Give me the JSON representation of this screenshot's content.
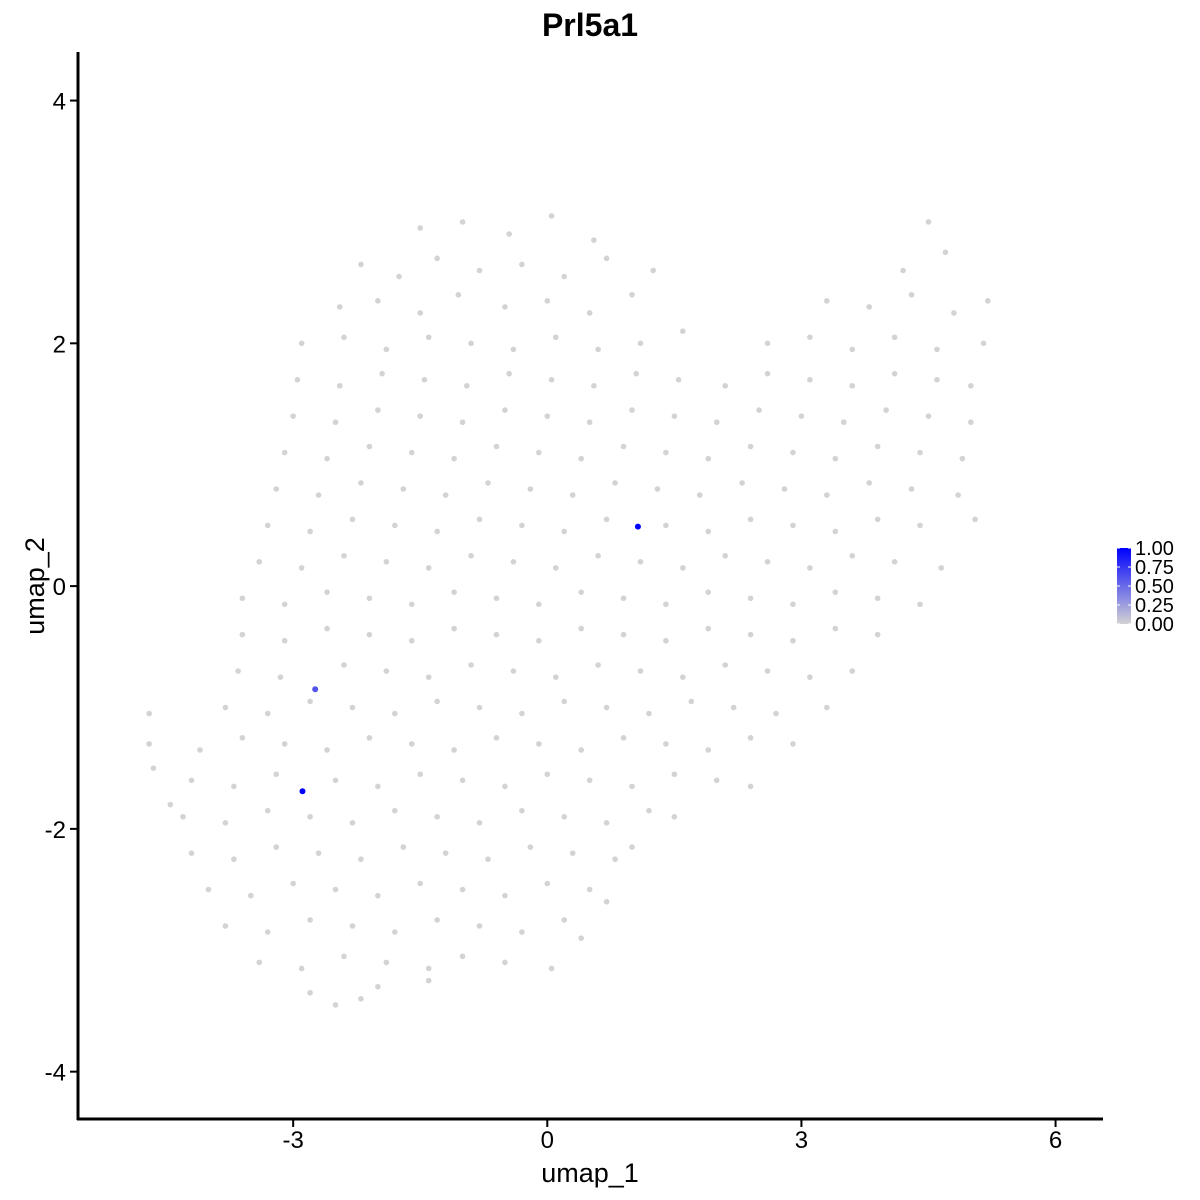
{
  "chart_data": {
    "type": "scatter",
    "title": "Prl5a1",
    "xlabel": "umap_1",
    "ylabel": "umap_2",
    "xlim": [
      -5.54,
      6.56
    ],
    "ylim": [
      -4.39,
      4.4
    ],
    "x_ticks": [
      -3,
      0,
      3,
      6
    ],
    "x_tick_labels": [
      "-3",
      "0",
      "3",
      "6"
    ],
    "y_ticks": [
      -4,
      -2,
      0,
      2,
      4
    ],
    "y_tick_labels": [
      "-4",
      "-2",
      "0",
      "2",
      "4"
    ],
    "grid": false,
    "legend": {
      "placement": "right",
      "type": "colorbar",
      "low_color": "#D3D3D3",
      "high_color": "#0000FF",
      "range": [
        0,
        1
      ],
      "labels": [
        "1.00",
        "0.75",
        "0.50",
        "0.25",
        "0.00"
      ],
      "values": [
        1.0,
        0.75,
        0.5,
        0.25,
        0.0
      ]
    },
    "expressing_cells": [
      {
        "x": 1.07,
        "y": 0.49,
        "value": 1.0
      },
      {
        "x": -2.74,
        "y": -0.85,
        "value": 0.6
      },
      {
        "x": -2.89,
        "y": -1.69,
        "value": 1.0
      }
    ],
    "non_expressing_value": 0.0,
    "non_expressing_cells": [
      [
        -1.5,
        2.95
      ],
      [
        -1.0,
        3.0
      ],
      [
        -0.45,
        2.9
      ],
      [
        0.05,
        3.05
      ],
      [
        0.55,
        2.85
      ],
      [
        4.5,
        3.0
      ],
      [
        -2.2,
        2.65
      ],
      [
        -1.75,
        2.55
      ],
      [
        -1.3,
        2.7
      ],
      [
        -0.8,
        2.6
      ],
      [
        -0.3,
        2.65
      ],
      [
        0.2,
        2.55
      ],
      [
        0.7,
        2.7
      ],
      [
        1.25,
        2.6
      ],
      [
        4.2,
        2.6
      ],
      [
        4.7,
        2.75
      ],
      [
        -2.45,
        2.3
      ],
      [
        -2.0,
        2.35
      ],
      [
        -1.5,
        2.25
      ],
      [
        -1.05,
        2.4
      ],
      [
        -0.5,
        2.3
      ],
      [
        0.0,
        2.35
      ],
      [
        0.5,
        2.25
      ],
      [
        1.0,
        2.4
      ],
      [
        3.3,
        2.35
      ],
      [
        3.8,
        2.3
      ],
      [
        4.3,
        2.4
      ],
      [
        4.8,
        2.25
      ],
      [
        5.2,
        2.35
      ],
      [
        -2.9,
        2.0
      ],
      [
        -2.4,
        2.05
      ],
      [
        -1.9,
        1.95
      ],
      [
        -1.4,
        2.05
      ],
      [
        -0.9,
        2.0
      ],
      [
        -0.4,
        1.95
      ],
      [
        0.1,
        2.05
      ],
      [
        0.6,
        1.95
      ],
      [
        1.1,
        2.0
      ],
      [
        1.6,
        2.1
      ],
      [
        2.6,
        2.0
      ],
      [
        3.1,
        2.05
      ],
      [
        3.6,
        1.95
      ],
      [
        4.1,
        2.05
      ],
      [
        4.6,
        1.95
      ],
      [
        5.15,
        2.0
      ],
      [
        -2.95,
        1.7
      ],
      [
        -2.45,
        1.65
      ],
      [
        -1.95,
        1.75
      ],
      [
        -1.45,
        1.7
      ],
      [
        -0.95,
        1.65
      ],
      [
        -0.45,
        1.75
      ],
      [
        0.05,
        1.7
      ],
      [
        0.55,
        1.65
      ],
      [
        1.05,
        1.75
      ],
      [
        1.55,
        1.7
      ],
      [
        2.1,
        1.65
      ],
      [
        2.6,
        1.75
      ],
      [
        3.1,
        1.7
      ],
      [
        3.6,
        1.65
      ],
      [
        4.1,
        1.75
      ],
      [
        4.6,
        1.7
      ],
      [
        5.0,
        1.65
      ],
      [
        -3.0,
        1.4
      ],
      [
        -2.5,
        1.35
      ],
      [
        -2.0,
        1.45
      ],
      [
        -1.5,
        1.4
      ],
      [
        -1.0,
        1.35
      ],
      [
        -0.5,
        1.45
      ],
      [
        0.0,
        1.4
      ],
      [
        0.5,
        1.35
      ],
      [
        1.0,
        1.45
      ],
      [
        1.5,
        1.4
      ],
      [
        2.0,
        1.35
      ],
      [
        2.5,
        1.45
      ],
      [
        3.0,
        1.4
      ],
      [
        3.5,
        1.35
      ],
      [
        4.0,
        1.45
      ],
      [
        4.5,
        1.4
      ],
      [
        5.0,
        1.35
      ],
      [
        -3.1,
        1.1
      ],
      [
        -2.6,
        1.05
      ],
      [
        -2.1,
        1.15
      ],
      [
        -1.6,
        1.1
      ],
      [
        -1.1,
        1.05
      ],
      [
        -0.6,
        1.15
      ],
      [
        -0.1,
        1.1
      ],
      [
        0.4,
        1.05
      ],
      [
        0.9,
        1.15
      ],
      [
        1.4,
        1.1
      ],
      [
        1.9,
        1.05
      ],
      [
        2.4,
        1.15
      ],
      [
        2.9,
        1.1
      ],
      [
        3.4,
        1.05
      ],
      [
        3.9,
        1.15
      ],
      [
        4.4,
        1.1
      ],
      [
        4.9,
        1.05
      ],
      [
        -3.2,
        0.8
      ],
      [
        -2.7,
        0.75
      ],
      [
        -2.2,
        0.85
      ],
      [
        -1.7,
        0.8
      ],
      [
        -1.2,
        0.75
      ],
      [
        -0.7,
        0.85
      ],
      [
        -0.2,
        0.8
      ],
      [
        0.3,
        0.75
      ],
      [
        0.8,
        0.85
      ],
      [
        1.3,
        0.8
      ],
      [
        1.8,
        0.75
      ],
      [
        2.3,
        0.85
      ],
      [
        2.8,
        0.8
      ],
      [
        3.3,
        0.75
      ],
      [
        3.8,
        0.85
      ],
      [
        4.3,
        0.8
      ],
      [
        4.85,
        0.75
      ],
      [
        -3.3,
        0.5
      ],
      [
        -2.8,
        0.45
      ],
      [
        -2.3,
        0.55
      ],
      [
        -1.8,
        0.5
      ],
      [
        -1.3,
        0.45
      ],
      [
        -0.8,
        0.55
      ],
      [
        -0.3,
        0.5
      ],
      [
        0.2,
        0.45
      ],
      [
        0.7,
        0.55
      ],
      [
        1.4,
        0.5
      ],
      [
        1.9,
        0.45
      ],
      [
        2.4,
        0.55
      ],
      [
        2.9,
        0.5
      ],
      [
        3.4,
        0.45
      ],
      [
        3.9,
        0.55
      ],
      [
        4.4,
        0.5
      ],
      [
        5.05,
        0.55
      ],
      [
        -3.4,
        0.2
      ],
      [
        -2.9,
        0.15
      ],
      [
        -2.4,
        0.25
      ],
      [
        -1.9,
        0.2
      ],
      [
        -1.4,
        0.15
      ],
      [
        -0.9,
        0.25
      ],
      [
        -0.4,
        0.2
      ],
      [
        0.1,
        0.15
      ],
      [
        0.6,
        0.25
      ],
      [
        1.1,
        0.2
      ],
      [
        1.6,
        0.15
      ],
      [
        2.1,
        0.25
      ],
      [
        2.6,
        0.2
      ],
      [
        3.1,
        0.15
      ],
      [
        3.6,
        0.25
      ],
      [
        4.1,
        0.2
      ],
      [
        4.65,
        0.15
      ],
      [
        -3.6,
        -0.1
      ],
      [
        -3.1,
        -0.15
      ],
      [
        -2.6,
        -0.05
      ],
      [
        -2.1,
        -0.1
      ],
      [
        -1.6,
        -0.15
      ],
      [
        -1.1,
        -0.05
      ],
      [
        -0.6,
        -0.1
      ],
      [
        -0.1,
        -0.15
      ],
      [
        0.4,
        -0.05
      ],
      [
        0.9,
        -0.1
      ],
      [
        1.4,
        -0.15
      ],
      [
        1.9,
        -0.05
      ],
      [
        2.4,
        -0.1
      ],
      [
        2.9,
        -0.15
      ],
      [
        3.4,
        -0.05
      ],
      [
        3.9,
        -0.1
      ],
      [
        4.4,
        -0.15
      ],
      [
        -3.6,
        -0.4
      ],
      [
        -3.1,
        -0.45
      ],
      [
        -2.6,
        -0.35
      ],
      [
        -2.1,
        -0.4
      ],
      [
        -1.6,
        -0.45
      ],
      [
        -1.1,
        -0.35
      ],
      [
        -0.6,
        -0.4
      ],
      [
        -0.1,
        -0.45
      ],
      [
        0.4,
        -0.35
      ],
      [
        0.9,
        -0.4
      ],
      [
        1.4,
        -0.45
      ],
      [
        1.9,
        -0.35
      ],
      [
        2.4,
        -0.4
      ],
      [
        2.9,
        -0.45
      ],
      [
        3.4,
        -0.35
      ],
      [
        3.9,
        -0.4
      ],
      [
        -3.65,
        -0.7
      ],
      [
        -3.15,
        -0.75
      ],
      [
        -2.4,
        -0.65
      ],
      [
        -1.9,
        -0.7
      ],
      [
        -1.4,
        -0.75
      ],
      [
        -0.9,
        -0.65
      ],
      [
        -0.4,
        -0.7
      ],
      [
        0.1,
        -0.75
      ],
      [
        0.6,
        -0.65
      ],
      [
        1.1,
        -0.7
      ],
      [
        1.6,
        -0.75
      ],
      [
        2.1,
        -0.65
      ],
      [
        2.6,
        -0.7
      ],
      [
        3.1,
        -0.75
      ],
      [
        3.6,
        -0.7
      ],
      [
        -4.7,
        -1.05
      ],
      [
        -3.8,
        -1.0
      ],
      [
        -3.3,
        -1.05
      ],
      [
        -2.8,
        -0.95
      ],
      [
        -2.3,
        -1.0
      ],
      [
        -1.8,
        -1.05
      ],
      [
        -1.3,
        -0.95
      ],
      [
        -0.8,
        -1.0
      ],
      [
        -0.3,
        -1.05
      ],
      [
        0.2,
        -0.95
      ],
      [
        0.7,
        -1.0
      ],
      [
        1.2,
        -1.05
      ],
      [
        1.7,
        -0.95
      ],
      [
        2.2,
        -1.0
      ],
      [
        2.7,
        -1.05
      ],
      [
        3.3,
        -1.0
      ],
      [
        -4.7,
        -1.3
      ],
      [
        -4.1,
        -1.35
      ],
      [
        -3.6,
        -1.25
      ],
      [
        -3.1,
        -1.3
      ],
      [
        -2.6,
        -1.35
      ],
      [
        -2.1,
        -1.25
      ],
      [
        -1.6,
        -1.3
      ],
      [
        -1.1,
        -1.35
      ],
      [
        -0.6,
        -1.25
      ],
      [
        -0.1,
        -1.3
      ],
      [
        0.4,
        -1.35
      ],
      [
        0.9,
        -1.25
      ],
      [
        1.4,
        -1.3
      ],
      [
        1.9,
        -1.35
      ],
      [
        2.4,
        -1.25
      ],
      [
        2.9,
        -1.3
      ],
      [
        -4.65,
        -1.5
      ],
      [
        -4.2,
        -1.6
      ],
      [
        -3.7,
        -1.65
      ],
      [
        -3.2,
        -1.55
      ],
      [
        -2.5,
        -1.6
      ],
      [
        -2.0,
        -1.65
      ],
      [
        -1.5,
        -1.55
      ],
      [
        -1.0,
        -1.6
      ],
      [
        -0.5,
        -1.65
      ],
      [
        0.0,
        -1.55
      ],
      [
        0.5,
        -1.6
      ],
      [
        1.0,
        -1.65
      ],
      [
        1.5,
        -1.55
      ],
      [
        2.0,
        -1.6
      ],
      [
        2.4,
        -1.65
      ],
      [
        -4.45,
        -1.8
      ],
      [
        -4.3,
        -1.9
      ],
      [
        -3.8,
        -1.95
      ],
      [
        -3.3,
        -1.85
      ],
      [
        -2.8,
        -1.9
      ],
      [
        -2.3,
        -1.95
      ],
      [
        -1.8,
        -1.85
      ],
      [
        -1.3,
        -1.9
      ],
      [
        -0.8,
        -1.95
      ],
      [
        -0.3,
        -1.85
      ],
      [
        0.2,
        -1.9
      ],
      [
        0.7,
        -1.95
      ],
      [
        1.2,
        -1.85
      ],
      [
        1.5,
        -1.9
      ],
      [
        -4.2,
        -2.2
      ],
      [
        -3.7,
        -2.25
      ],
      [
        -3.2,
        -2.15
      ],
      [
        -2.7,
        -2.2
      ],
      [
        -2.2,
        -2.25
      ],
      [
        -1.7,
        -2.15
      ],
      [
        -1.2,
        -2.2
      ],
      [
        -0.7,
        -2.25
      ],
      [
        -0.2,
        -2.15
      ],
      [
        0.3,
        -2.2
      ],
      [
        0.8,
        -2.25
      ],
      [
        1.0,
        -2.15
      ],
      [
        -4.0,
        -2.5
      ],
      [
        -3.5,
        -2.55
      ],
      [
        -3.0,
        -2.45
      ],
      [
        -2.5,
        -2.5
      ],
      [
        -2.0,
        -2.55
      ],
      [
        -1.5,
        -2.45
      ],
      [
        -1.0,
        -2.5
      ],
      [
        -0.5,
        -2.55
      ],
      [
        0.0,
        -2.45
      ],
      [
        0.5,
        -2.5
      ],
      [
        0.7,
        -2.6
      ],
      [
        -3.8,
        -2.8
      ],
      [
        -3.3,
        -2.85
      ],
      [
        -2.8,
        -2.75
      ],
      [
        -2.3,
        -2.8
      ],
      [
        -1.8,
        -2.85
      ],
      [
        -1.3,
        -2.75
      ],
      [
        -0.8,
        -2.8
      ],
      [
        -0.3,
        -2.85
      ],
      [
        0.2,
        -2.75
      ],
      [
        0.4,
        -2.9
      ],
      [
        -3.4,
        -3.1
      ],
      [
        -2.9,
        -3.15
      ],
      [
        -2.4,
        -3.05
      ],
      [
        -1.9,
        -3.1
      ],
      [
        -1.4,
        -3.15
      ],
      [
        -1.0,
        -3.05
      ],
      [
        -0.5,
        -3.1
      ],
      [
        0.05,
        -3.15
      ],
      [
        -2.8,
        -3.35
      ],
      [
        -2.5,
        -3.45
      ],
      [
        -2.2,
        -3.4
      ],
      [
        -2.0,
        -3.3
      ],
      [
        -1.4,
        -3.25
      ]
    ]
  }
}
